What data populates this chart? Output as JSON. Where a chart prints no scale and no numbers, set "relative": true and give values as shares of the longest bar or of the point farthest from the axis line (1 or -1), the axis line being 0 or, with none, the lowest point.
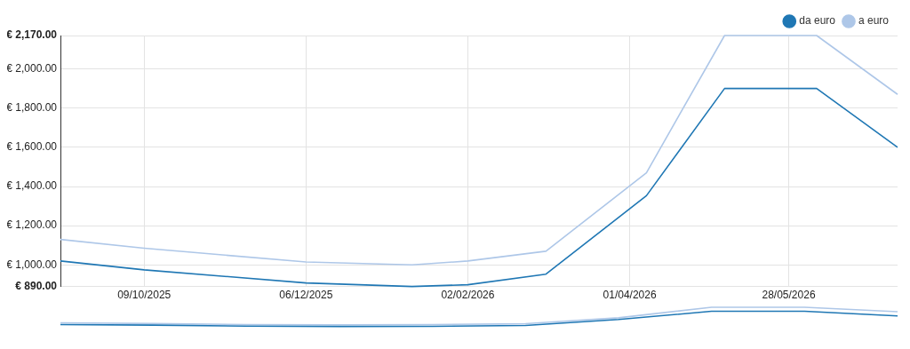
{
  "chart_data": [
    {
      "type": "line",
      "x": [
        "2025-09-09",
        "2025-10-09",
        "2025-12-06",
        "2026-01-13",
        "2026-02-02",
        "2026-03-02",
        "2026-04-07",
        "2026-05-05",
        "2026-06-07",
        "2026-07-06"
      ],
      "series": [
        {
          "name": "da euro",
          "color": "#1f77b4",
          "values": [
            1020,
            975,
            908,
            890,
            899,
            953,
            1353,
            1900,
            1900,
            1600
          ]
        },
        {
          "name": "a euro",
          "color": "#aec7e8",
          "values": [
            1130,
            1085,
            1015,
            1000,
            1020,
            1070,
            1470,
            2170,
            2170,
            1870
          ]
        }
      ],
      "xlim": [
        "2025-09-09",
        "2026-07-06"
      ],
      "xticks": [
        {
          "value": "2025-10-09",
          "label": "09/10/2025"
        },
        {
          "value": "2025-12-06",
          "label": "06/12/2025"
        },
        {
          "value": "2026-02-02",
          "label": "02/02/2026"
        },
        {
          "value": "2026-04-01",
          "label": "01/04/2026"
        },
        {
          "value": "2026-05-28",
          "label": "28/05/2026"
        }
      ],
      "ylim": [
        890,
        2170
      ],
      "yticks": [
        {
          "value": 890,
          "label": "€ 890.00"
        },
        {
          "value": 1000,
          "label": "€ 1,000.00"
        },
        {
          "value": 1200,
          "label": "€ 1,200.00"
        },
        {
          "value": 1400,
          "label": "€ 1,400.00"
        },
        {
          "value": 1600,
          "label": "€ 1,600.00"
        },
        {
          "value": 1800,
          "label": "€ 1,800.00"
        },
        {
          "value": 2000,
          "label": "€ 2,000.00"
        },
        {
          "value": 2170,
          "label": "€ 2,170.00"
        }
      ],
      "grid": true,
      "legend": "top right",
      "marker": "none",
      "line_style": "solid"
    },
    {
      "type": "line",
      "categories": [
        null,
        null,
        null,
        null,
        null,
        null,
        null,
        null,
        null,
        null
      ],
      "series": [
        {
          "color": "#1f77b4",
          "values": [
            0.1,
            0.066,
            0.014,
            0,
            0.007,
            0.049,
            0.36,
            0.79,
            0.79,
            0.55
          ]
        },
        {
          "color": "#aec7e8",
          "values": [
            0.19,
            0.15,
            0.1,
            0.086,
            0.1,
            0.14,
            0.45,
            1,
            1,
            0.77
          ]
        }
      ],
      "relative": true,
      "legend": false,
      "marker": "none",
      "line_style": "solid"
    }
  ]
}
